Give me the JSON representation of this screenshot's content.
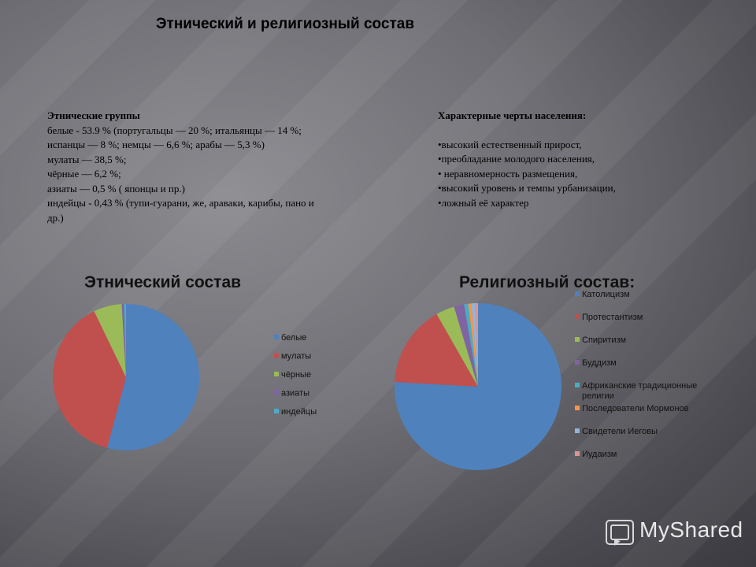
{
  "slide": {
    "title": "Этнический и религиозный состав"
  },
  "ethnic_text": {
    "heading": "Этнические группы",
    "lines": [
      "белые - 53.9 % (португальцы — 20 %; итальянцы — 14 %;",
      "испанцы — 8 %; немцы — 6,6 %; арабы — 5,3 %)",
      "мулаты — 38,5 %;",
      "чёрные — 6,2 %;",
      "азиаты — 0,5 % ( японцы и пр.)",
      "индейцы - 0,43 % (тупи-гуарани, же, араваки, карибы, пано и",
      "др.)"
    ]
  },
  "features_text": {
    "heading": "Характерные черты населения:",
    "bullets": [
      "•высокий естественный прирост,",
      "•преобладание молодого населения,",
      "• неравномерность размещения,",
      "•высокий уровень и темпы урбанизации,",
      "•ложный её характер"
    ]
  },
  "logo": {
    "text": "MyShared"
  },
  "chart_data": [
    {
      "type": "pie",
      "title": "Этнический состав",
      "categories": [
        "белые",
        "мулаты",
        "чёрные",
        "азиаты",
        "индейцы"
      ],
      "values": [
        53.9,
        38.5,
        6.2,
        0.5,
        0.43
      ],
      "colors": [
        "#4f81bd",
        "#c0504d",
        "#9bbb59",
        "#8064a2",
        "#4bacc6"
      ],
      "legend": "right"
    },
    {
      "type": "pie",
      "title": "Религиозный состав:",
      "categories": [
        "Католицизм",
        "Протестантизм",
        "Спиритизм",
        "Буддизм",
        "Африканские традиционные религии",
        "Последователи Мормонов",
        "Свидетели Иеговы",
        "Иудаизм"
      ],
      "values": [
        73.6,
        15.4,
        3.5,
        1.9,
        0.8,
        0.6,
        0.7,
        0.5
      ],
      "colors": [
        "#4f81bd",
        "#c0504d",
        "#9bbb59",
        "#8064a2",
        "#4bacc6",
        "#f79646",
        "#95b3d7",
        "#d99694"
      ],
      "legend": "right"
    }
  ]
}
